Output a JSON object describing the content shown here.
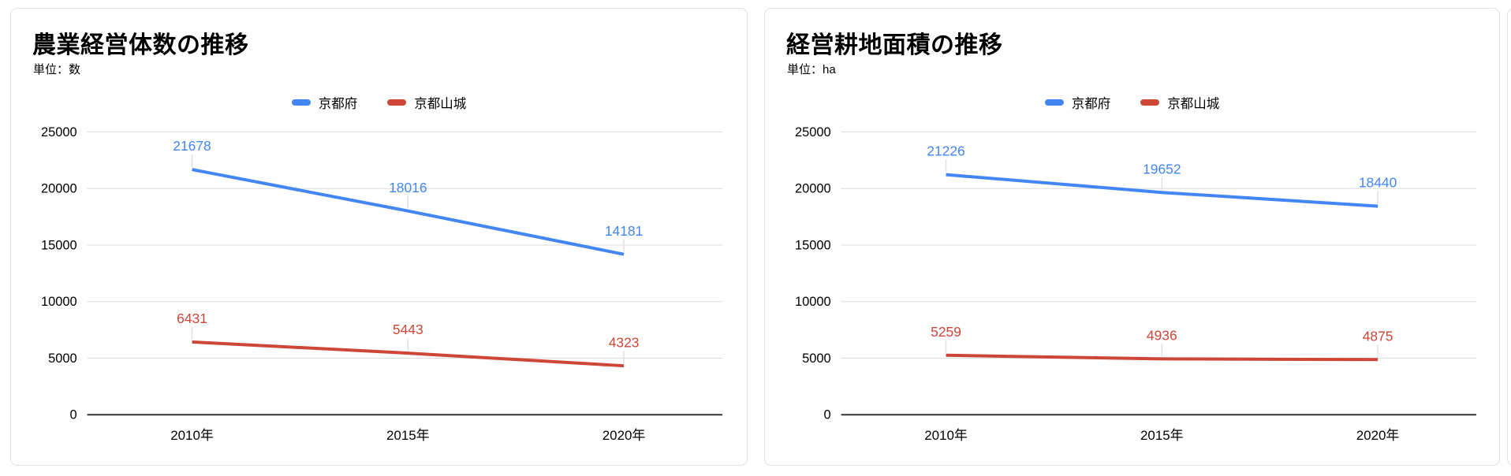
{
  "style": {
    "background": "#ffffff",
    "card_border": "#e2e2e2",
    "grid_color": "#dcdcdc",
    "axis_color": "#333333",
    "leader_color": "#e0e0e0",
    "text_color": "#000000",
    "series_blue": "#4285f4",
    "series_red": "#cd4637"
  },
  "chart_data": [
    {
      "type": "line",
      "title": "農業経営体数の推移",
      "unit": "単位：数",
      "categories": [
        "2010年",
        "2015年",
        "2020年"
      ],
      "series": [
        {
          "name": "京都府",
          "color": "#4285f4",
          "values": [
            21678,
            18016,
            14181
          ]
        },
        {
          "name": "京都山城",
          "color": "#cd4637",
          "values": [
            6431,
            5443,
            4323
          ]
        }
      ],
      "ylim": [
        0,
        25000
      ],
      "yticks": [
        0,
        5000,
        10000,
        15000,
        20000,
        25000
      ],
      "grid": true,
      "legend_position": "top",
      "data_labels": true
    },
    {
      "type": "line",
      "title": "経営耕地面積の推移",
      "unit": "単位：ha",
      "categories": [
        "2010年",
        "2015年",
        "2020年"
      ],
      "series": [
        {
          "name": "京都府",
          "color": "#4285f4",
          "values": [
            21226,
            19652,
            18440
          ]
        },
        {
          "name": "京都山城",
          "color": "#cd4637",
          "values": [
            5259,
            4936,
            4875
          ]
        }
      ],
      "ylim": [
        0,
        25000
      ],
      "yticks": [
        0,
        5000,
        10000,
        15000,
        20000,
        25000
      ],
      "grid": true,
      "legend_position": "top",
      "data_labels": true
    }
  ]
}
